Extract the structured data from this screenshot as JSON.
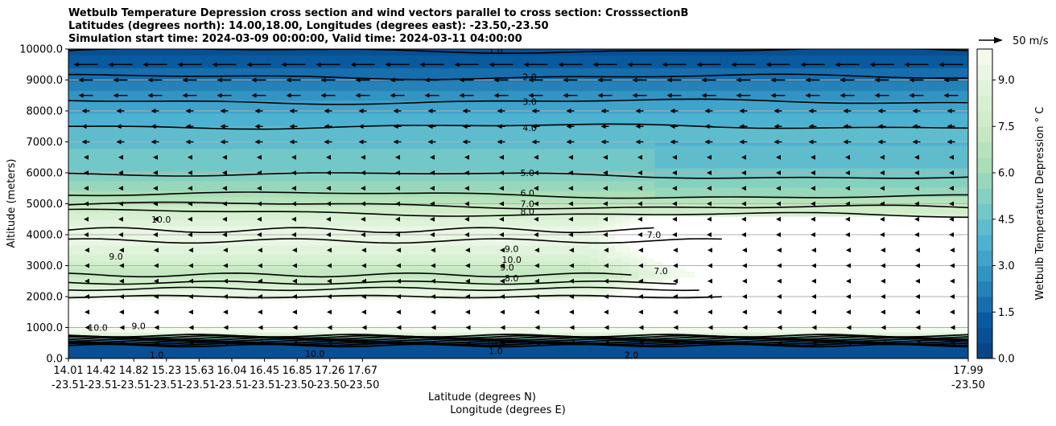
{
  "title_lines": [
    "Wetbulb Temperature Depression cross section and wind vectors parallel to cross section: CrosssectionB",
    "Latitudes (degrees north): 14.00,18.00, Longitudes (degrees east): -23.50,-23.50",
    "Simulation start time: 2024-03-09 00:00:00, Valid time: 2024-03-11 04:00:00"
  ],
  "chart_data": {
    "type": "heatmap",
    "subtype": "filled contour cross section with contour lines and wind vectors",
    "ylabel": "Altitude (meters)",
    "xlabel_lines": [
      "Latitude (degrees N)",
      "Longitude (degrees E)"
    ],
    "ylim": [
      0,
      10000
    ],
    "y_ticks": [
      "0.0",
      "1000.0",
      "2000.0",
      "3000.0",
      "4000.0",
      "5000.0",
      "6000.0",
      "7000.0",
      "8000.0",
      "9000.0",
      "10000.0"
    ],
    "y_tick_values": [
      0,
      1000,
      2000,
      3000,
      4000,
      5000,
      6000,
      7000,
      8000,
      9000,
      10000
    ],
    "x_ticks": [
      {
        "lat": "14.01",
        "lon": "-23.51"
      },
      {
        "lat": "14.42",
        "lon": "-23.51"
      },
      {
        "lat": "14.82",
        "lon": "-23.51"
      },
      {
        "lat": "15.23",
        "lon": "-23.51"
      },
      {
        "lat": "15.63",
        "lon": "-23.51"
      },
      {
        "lat": "16.04",
        "lon": "-23.51"
      },
      {
        "lat": "16.45",
        "lon": "-23.51"
      },
      {
        "lat": "16.85",
        "lon": "-23.50"
      },
      {
        "lat": "17.26",
        "lon": "-23.50"
      },
      {
        "lat": "17.67",
        "lon": "-23.50"
      },
      {
        "lat": "17.99",
        "lon": "-23.50"
      }
    ],
    "xlim": [
      14.01,
      17.99
    ],
    "grid": "horizontal lines at y ticks",
    "colorbar": {
      "label": "Wetbulb Temperature Depression $^\\circ$C",
      "label_display": "Wetbulb Temperature Depression ° C",
      "range": [
        0,
        10
      ],
      "ticks": [
        "0.0",
        "1.5",
        "3.0",
        "4.5",
        "6.0",
        "7.5",
        "9.0"
      ],
      "tick_values": [
        0,
        1.5,
        3.0,
        4.5,
        6.0,
        7.5,
        9.0
      ],
      "levels": 20,
      "colormap": "GnBu reversed",
      "color_low": "#08589e",
      "color_high": "#f7fcf0"
    },
    "vector_key": {
      "label": "50 m/s",
      "speed": 50
    },
    "contour_labels": [
      "1.0",
      "2.0",
      "3.0",
      "4.0",
      "5.0",
      "6.0",
      "7.0",
      "8.0",
      "9.0",
      "10.0",
      "9.0",
      "8.0",
      "7.0",
      "7.0",
      "10.0",
      "9.0",
      "9.0",
      "10.0",
      "10.0",
      "1.0",
      "2.0",
      "10.0",
      "1.0"
    ],
    "contour_lines_approx_altitude_m": [
      {
        "level": "1.0",
        "altitude": 9950
      },
      {
        "level": "2.0",
        "altitude": 9100
      },
      {
        "level": "3.0",
        "altitude": 8300
      },
      {
        "level": "4.0",
        "altitude": 7500
      },
      {
        "level": "5.0",
        "altitude": 6000
      },
      {
        "level": "6.0",
        "altitude": 5350
      },
      {
        "level": "7.0",
        "altitude": 5000
      },
      {
        "level": "8.0",
        "altitude": 4750
      }
    ],
    "field_profile_at_16.04": [
      {
        "altitude": 0,
        "value": 1.0
      },
      {
        "altitude": 500,
        "value": 0.5
      },
      {
        "altitude": 800,
        "value": 9.5
      },
      {
        "altitude": 1500,
        "value": 11
      },
      {
        "altitude": 2000,
        "value": 9.5
      },
      {
        "altitude": 2700,
        "value": 7.0
      },
      {
        "altitude": 3300,
        "value": 8.5
      },
      {
        "altitude": 4000,
        "value": 9.5
      },
      {
        "altitude": 4700,
        "value": 8.0
      },
      {
        "altitude": 5200,
        "value": 6.5
      },
      {
        "altitude": 6000,
        "value": 5.0
      },
      {
        "altitude": 7500,
        "value": 4.0
      },
      {
        "altitude": 8300,
        "value": 3.0
      },
      {
        "altitude": 9000,
        "value": 2.0
      },
      {
        "altitude": 10000,
        "value": 0.8
      }
    ],
    "wind": "predominantly parallel westward (pointing left) vectors, strongest near 9000-10000 m"
  }
}
